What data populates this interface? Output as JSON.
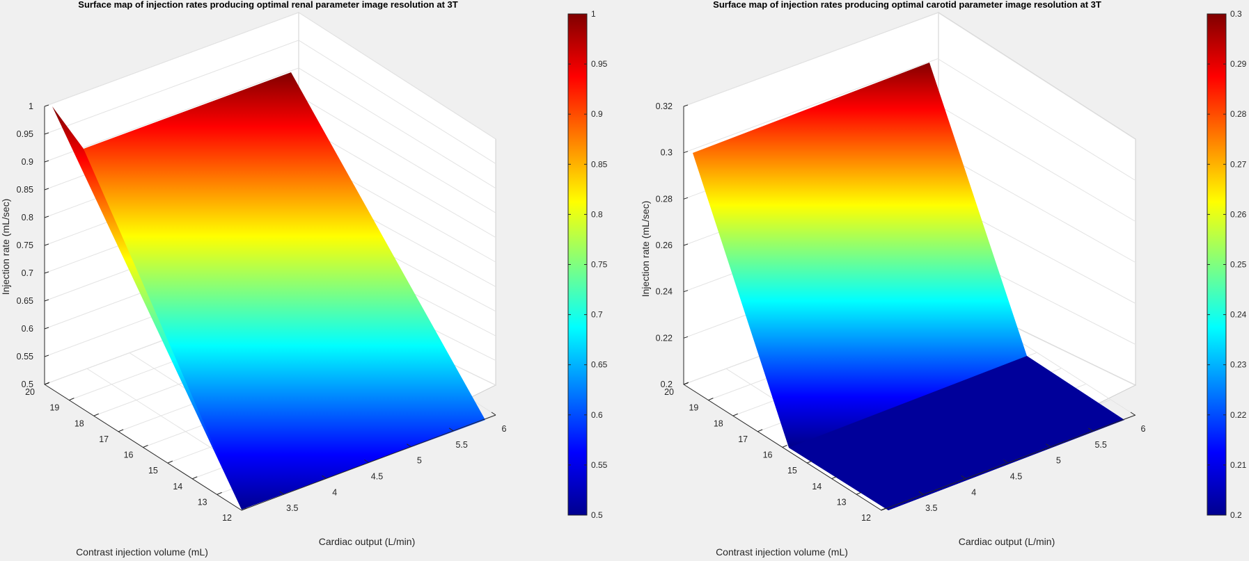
{
  "chart_data": [
    {
      "type": "surface",
      "title": "Surface map of injection rates producing optimal renal parameter image resolution at 3T",
      "xlabel": "Cardiac output (L/min)",
      "ylabel": "Contrast injection volume (mL)",
      "zlabel": "Injection rate (mL/sec)",
      "xlim": [
        3,
        6
      ],
      "ylim": [
        12,
        20
      ],
      "zlim": [
        0.5,
        1
      ],
      "x_ticks": [
        "3.5",
        "4",
        "4.5",
        "5",
        "5.5",
        "6"
      ],
      "y_ticks": [
        "12",
        "13",
        "14",
        "15",
        "16",
        "17",
        "18",
        "19",
        "20"
      ],
      "z_ticks": [
        "0.5",
        "0.55",
        "0.6",
        "0.65",
        "0.7",
        "0.75",
        "0.8",
        "0.85",
        "0.9",
        "0.95",
        "1"
      ],
      "colormap": "jet",
      "caxis": [
        0.5,
        1
      ],
      "colorbar_ticks": [
        "0.5",
        "0.55",
        "0.6",
        "0.65",
        "0.7",
        "0.75",
        "0.8",
        "0.85",
        "0.9",
        "0.95",
        "1"
      ],
      "surface_corners": [
        {
          "x": 3,
          "y": 12,
          "z": 0.5
        },
        {
          "x": 6,
          "y": 12,
          "z": 0.5
        },
        {
          "x": 6,
          "y": 20,
          "z": 0.9
        },
        {
          "x": 3,
          "y": 20,
          "z": 1.0
        }
      ],
      "grid": "on"
    },
    {
      "type": "surface",
      "title": "Surface map of injection rates producing optimal carotid parameter image resolution at 3T",
      "xlabel": "Cardiac output (L/min)",
      "ylabel": "Contrast injection volume (mL)",
      "zlabel": "Injection rate (mL/sec)",
      "xlim": [
        3,
        6
      ],
      "ylim": [
        12,
        20
      ],
      "zlim": [
        0.2,
        0.32
      ],
      "x_ticks": [
        "3.5",
        "4",
        "4.5",
        "5",
        "5.5",
        "6"
      ],
      "y_ticks": [
        "12",
        "13",
        "14",
        "15",
        "16",
        "17",
        "18",
        "19",
        "20"
      ],
      "z_ticks": [
        "0.2",
        "0.22",
        "0.24",
        "0.26",
        "0.28",
        "0.3",
        "0.32"
      ],
      "colormap": "jet",
      "caxis": [
        0.2,
        0.3
      ],
      "colorbar_ticks": [
        "0.2",
        "0.21",
        "0.22",
        "0.23",
        "0.24",
        "0.25",
        "0.26",
        "0.27",
        "0.28",
        "0.29",
        "0.3"
      ],
      "surface_corners": [
        {
          "x": 3,
          "y": 12,
          "z": 0.2
        },
        {
          "x": 6,
          "y": 12,
          "z": 0.2
        },
        {
          "x": 6,
          "y": 15.6,
          "z": 0.2
        },
        {
          "x": 6,
          "y": 20,
          "z": 0.3
        },
        {
          "x": 3,
          "y": 20,
          "z": 0.3
        },
        {
          "x": 3,
          "y": 15.6,
          "z": 0.2
        }
      ],
      "grid": "on"
    }
  ]
}
